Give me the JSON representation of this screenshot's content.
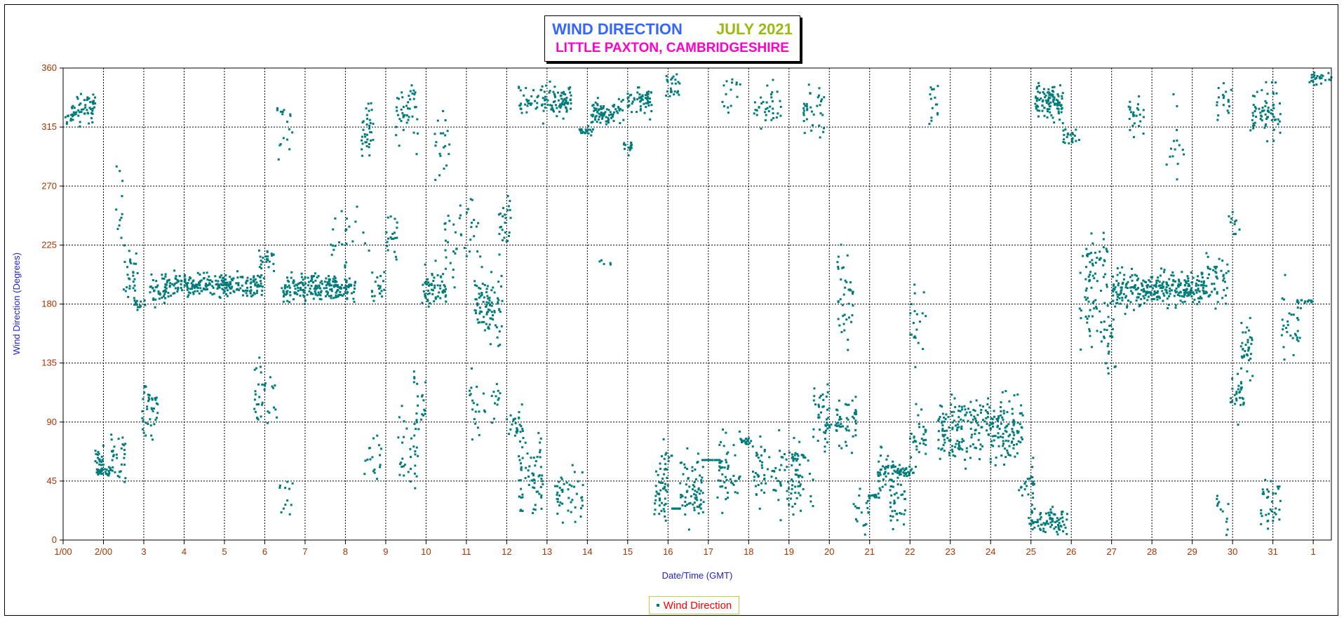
{
  "chart_data": {
    "type": "scatter",
    "title": "WIND DIRECTION",
    "title_date": "JULY 2021",
    "subtitle": "LITTLE PAXTON, CAMBRIDGESHIRE",
    "xlabel": "Date/Time (GMT)",
    "ylabel": "Wind Direction (Degrees)",
    "ylim": [
      0,
      360
    ],
    "yticks": [
      0,
      45,
      90,
      135,
      180,
      225,
      270,
      315,
      360
    ],
    "xlim": [
      1,
      32.45
    ],
    "xticks": [
      {
        "x": 1,
        "label": "1/00"
      },
      {
        "x": 2,
        "label": "2/00"
      },
      {
        "x": 3,
        "label": "3"
      },
      {
        "x": 4,
        "label": "4"
      },
      {
        "x": 5,
        "label": "5"
      },
      {
        "x": 6,
        "label": "6"
      },
      {
        "x": 7,
        "label": "7"
      },
      {
        "x": 8,
        "label": "8"
      },
      {
        "x": 9,
        "label": "9"
      },
      {
        "x": 10,
        "label": "10"
      },
      {
        "x": 11,
        "label": "11"
      },
      {
        "x": 12,
        "label": "12"
      },
      {
        "x": 13,
        "label": "13"
      },
      {
        "x": 14,
        "label": "14"
      },
      {
        "x": 15,
        "label": "15"
      },
      {
        "x": 16,
        "label": "16"
      },
      {
        "x": 17,
        "label": "17"
      },
      {
        "x": 18,
        "label": "18"
      },
      {
        "x": 19,
        "label": "19"
      },
      {
        "x": 20,
        "label": "20"
      },
      {
        "x": 21,
        "label": "21"
      },
      {
        "x": 22,
        "label": "22"
      },
      {
        "x": 23,
        "label": "23"
      },
      {
        "x": 24,
        "label": "24"
      },
      {
        "x": 25,
        "label": "25"
      },
      {
        "x": 26,
        "label": "26"
      },
      {
        "x": 27,
        "label": "27"
      },
      {
        "x": 28,
        "label": "28"
      },
      {
        "x": 29,
        "label": "29"
      },
      {
        "x": 30,
        "label": "30"
      },
      {
        "x": 31,
        "label": "31"
      },
      {
        "x": 32,
        "label": "1"
      }
    ],
    "grid": true,
    "legend_position": "bottom-center",
    "series": [
      {
        "name": "Wind Direction",
        "color": "#007b7b",
        "clusters": [
          [
            1.05,
            1.25,
            320,
            5,
            10
          ],
          [
            1.2,
            1.8,
            330,
            15,
            55
          ],
          [
            1.8,
            2.0,
            60,
            15,
            25
          ],
          [
            1.85,
            2.15,
            52,
            5,
            25
          ],
          [
            2.1,
            2.55,
            60,
            25,
            35
          ],
          [
            2.3,
            2.6,
            250,
            60,
            12
          ],
          [
            2.5,
            2.85,
            205,
            25,
            28
          ],
          [
            2.75,
            3.05,
            180,
            5,
            15
          ],
          [
            2.95,
            3.35,
            100,
            25,
            40
          ],
          [
            3.15,
            3.6,
            190,
            15,
            35
          ],
          [
            3.5,
            5.95,
            195,
            10,
            260
          ],
          [
            5.7,
            6.3,
            110,
            25,
            35
          ],
          [
            5.85,
            6.25,
            215,
            15,
            25
          ],
          [
            6.25,
            6.7,
            320,
            25,
            18
          ],
          [
            6.3,
            6.7,
            30,
            25,
            12
          ],
          [
            6.4,
            8.25,
            192,
            12,
            220
          ],
          [
            7.6,
            8.6,
            230,
            30,
            25
          ],
          [
            8.4,
            8.7,
            310,
            25,
            35
          ],
          [
            8.6,
            9.0,
            190,
            20,
            20
          ],
          [
            8.45,
            8.9,
            60,
            30,
            18
          ],
          [
            9.0,
            9.3,
            230,
            30,
            20
          ],
          [
            9.25,
            9.8,
            325,
            25,
            45
          ],
          [
            9.3,
            9.8,
            70,
            40,
            35
          ],
          [
            9.7,
            10.0,
            110,
            30,
            20
          ],
          [
            9.9,
            10.5,
            195,
            20,
            65
          ],
          [
            10.2,
            10.6,
            300,
            35,
            20
          ],
          [
            10.45,
            10.9,
            230,
            35,
            20
          ],
          [
            10.85,
            11.3,
            240,
            25,
            18
          ],
          [
            11.0,
            11.5,
            100,
            30,
            20
          ],
          [
            11.2,
            11.9,
            180,
            30,
            90
          ],
          [
            11.6,
            11.9,
            110,
            20,
            12
          ],
          [
            11.8,
            12.1,
            240,
            30,
            25
          ],
          [
            12.0,
            12.4,
            90,
            15,
            25
          ],
          [
            12.3,
            12.9,
            50,
            35,
            70
          ],
          [
            12.3,
            13.6,
            335,
            15,
            110
          ],
          [
            13.2,
            13.9,
            35,
            25,
            45
          ],
          [
            13.8,
            14.15,
            312,
            3,
            22
          ],
          [
            14.3,
            14.6,
            212,
            3,
            5
          ],
          [
            14.1,
            14.9,
            325,
            12,
            85
          ],
          [
            14.9,
            15.1,
            300,
            8,
            15
          ],
          [
            15.0,
            15.6,
            335,
            12,
            60
          ],
          [
            15.65,
            16.0,
            35,
            25,
            40
          ],
          [
            15.8,
            16.1,
            60,
            15,
            15
          ],
          [
            16.0,
            16.3,
            24,
            0,
            12
          ],
          [
            15.95,
            16.35,
            345,
            15,
            25
          ],
          [
            16.3,
            16.9,
            40,
            30,
            70
          ],
          [
            16.85,
            17.3,
            61,
            0,
            25
          ],
          [
            17.2,
            17.8,
            50,
            30,
            50
          ],
          [
            17.35,
            17.8,
            340,
            20,
            15
          ],
          [
            17.8,
            18.1,
            75,
            3,
            18
          ],
          [
            18.1,
            18.8,
            330,
            20,
            35
          ],
          [
            18.1,
            19.3,
            50,
            30,
            90
          ],
          [
            19.05,
            19.4,
            64,
            3,
            15
          ],
          [
            19.1,
            19.6,
            45,
            25,
            20
          ],
          [
            19.35,
            19.9,
            330,
            25,
            35
          ],
          [
            19.6,
            20.0,
            95,
            30,
            40
          ],
          [
            19.95,
            20.3,
            87,
            3,
            12
          ],
          [
            20.2,
            20.6,
            180,
            50,
            40
          ],
          [
            20.15,
            20.7,
            90,
            25,
            40
          ],
          [
            20.6,
            21.0,
            22,
            20,
            18
          ],
          [
            20.95,
            21.25,
            33,
            3,
            15
          ],
          [
            21.2,
            21.6,
            50,
            20,
            40
          ],
          [
            21.5,
            21.9,
            30,
            25,
            35
          ],
          [
            21.6,
            22.1,
            53,
            5,
            40
          ],
          [
            22.0,
            22.4,
            165,
            40,
            20
          ],
          [
            22.0,
            22.4,
            80,
            25,
            30
          ],
          [
            22.4,
            22.7,
            340,
            20,
            15
          ],
          [
            22.7,
            24.8,
            85,
            30,
            260
          ],
          [
            24.7,
            25.1,
            40,
            25,
            25
          ],
          [
            25.0,
            25.9,
            15,
            12,
            85
          ],
          [
            25.1,
            25.8,
            335,
            15,
            100
          ],
          [
            25.8,
            26.2,
            308,
            8,
            20
          ],
          [
            26.2,
            26.7,
            180,
            40,
            35
          ],
          [
            26.35,
            26.9,
            215,
            25,
            40
          ],
          [
            26.7,
            27.1,
            160,
            40,
            30
          ],
          [
            27.0,
            27.6,
            190,
            20,
            70
          ],
          [
            27.4,
            27.8,
            320,
            20,
            25
          ],
          [
            27.6,
            29.3,
            192,
            15,
            220
          ],
          [
            28.3,
            28.8,
            300,
            40,
            15
          ],
          [
            29.2,
            29.9,
            200,
            20,
            55
          ],
          [
            29.6,
            30.0,
            335,
            20,
            18
          ],
          [
            29.6,
            29.9,
            25,
            25,
            12
          ],
          [
            29.9,
            30.2,
            240,
            20,
            10
          ],
          [
            29.95,
            30.3,
            110,
            20,
            30
          ],
          [
            30.2,
            30.5,
            145,
            25,
            35
          ],
          [
            30.4,
            30.9,
            325,
            20,
            40
          ],
          [
            30.7,
            31.2,
            30,
            25,
            35
          ],
          [
            30.8,
            31.2,
            330,
            25,
            30
          ],
          [
            31.2,
            31.7,
            165,
            30,
            30
          ],
          [
            31.6,
            32.0,
            182,
            2,
            15
          ],
          [
            31.9,
            32.45,
            352,
            5,
            25
          ]
        ]
      }
    ]
  }
}
